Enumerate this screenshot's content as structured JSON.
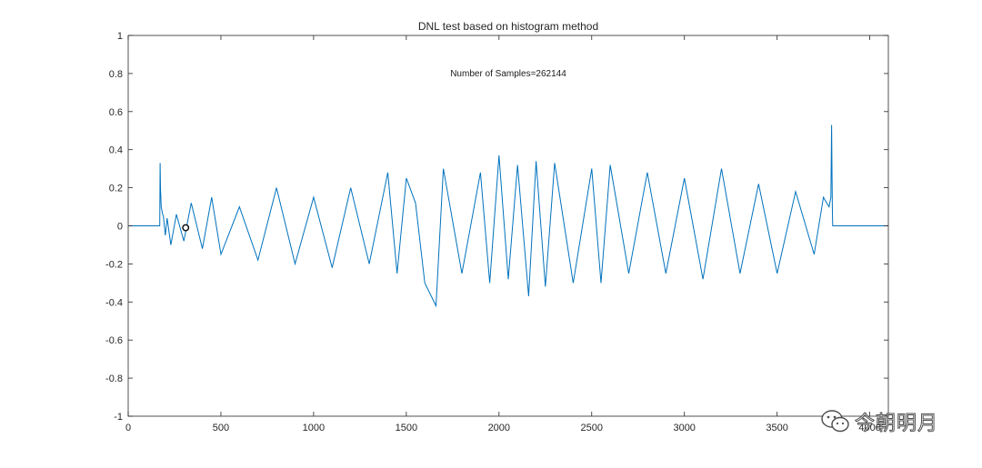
{
  "chart_data": {
    "type": "line",
    "title": "DNL test based on histogram method",
    "annotation": "Number of Samples=262144",
    "xlabel": "",
    "ylabel": "",
    "xlim": [
      0,
      4100
    ],
    "ylim": [
      -1,
      1
    ],
    "xticks": [
      0,
      500,
      1000,
      1500,
      2000,
      2500,
      3000,
      3500,
      4000
    ],
    "xtick_labels": [
      "0",
      "500",
      "1000",
      "1500",
      "2000",
      "2500",
      "3000",
      "3500",
      "4000"
    ],
    "yticks": [
      -1,
      -0.8,
      -0.6,
      -0.4,
      -0.2,
      0,
      0.2,
      0.4,
      0.6,
      0.8,
      1
    ],
    "ytick_labels": [
      "-1",
      "-0.8",
      "-0.6",
      "-0.4",
      "-0.2",
      "0",
      "0.2",
      "0.4",
      "0.6",
      "0.8",
      "1"
    ],
    "grid": false,
    "series_color": "#0072BD",
    "series": [
      {
        "name": "",
        "x": [
          0,
          170,
          172,
          174,
          176,
          178,
          182,
          186,
          190,
          200,
          210,
          230,
          260,
          300,
          340,
          400,
          450,
          500,
          600,
          700,
          800,
          900,
          1000,
          1100,
          1200,
          1300,
          1400,
          1450,
          1500,
          1550,
          1600,
          1660,
          1700,
          1800,
          1900,
          1950,
          2000,
          2050,
          2100,
          2160,
          2200,
          2250,
          2300,
          2400,
          2500,
          2550,
          2600,
          2700,
          2800,
          2900,
          3000,
          3100,
          3200,
          3300,
          3400,
          3500,
          3600,
          3700,
          3750,
          3780,
          3790,
          3794,
          3796,
          3798,
          3800,
          4100
        ],
        "y": [
          0,
          0,
          0.33,
          0.2,
          0.15,
          0.1,
          0.08,
          0.06,
          0.05,
          -0.05,
          0.04,
          -0.1,
          0.06,
          -0.08,
          0.12,
          -0.12,
          0.15,
          -0.15,
          0.1,
          -0.18,
          0.2,
          -0.2,
          0.15,
          -0.22,
          0.2,
          -0.2,
          0.28,
          -0.25,
          0.25,
          0.12,
          -0.3,
          -0.42,
          0.3,
          -0.25,
          0.28,
          -0.3,
          0.37,
          -0.28,
          0.32,
          -0.37,
          0.34,
          -0.32,
          0.33,
          -0.3,
          0.3,
          -0.3,
          0.32,
          -0.25,
          0.28,
          -0.25,
          0.25,
          -0.28,
          0.3,
          -0.25,
          0.22,
          -0.25,
          0.18,
          -0.15,
          0.15,
          0.1,
          0.15,
          0.53,
          0.3,
          0.1,
          0,
          0
        ]
      }
    ],
    "marker": {
      "x": 310,
      "y": -0.01
    }
  },
  "watermark": {
    "text": "今朝明月",
    "icon": "wechat-icon"
  }
}
